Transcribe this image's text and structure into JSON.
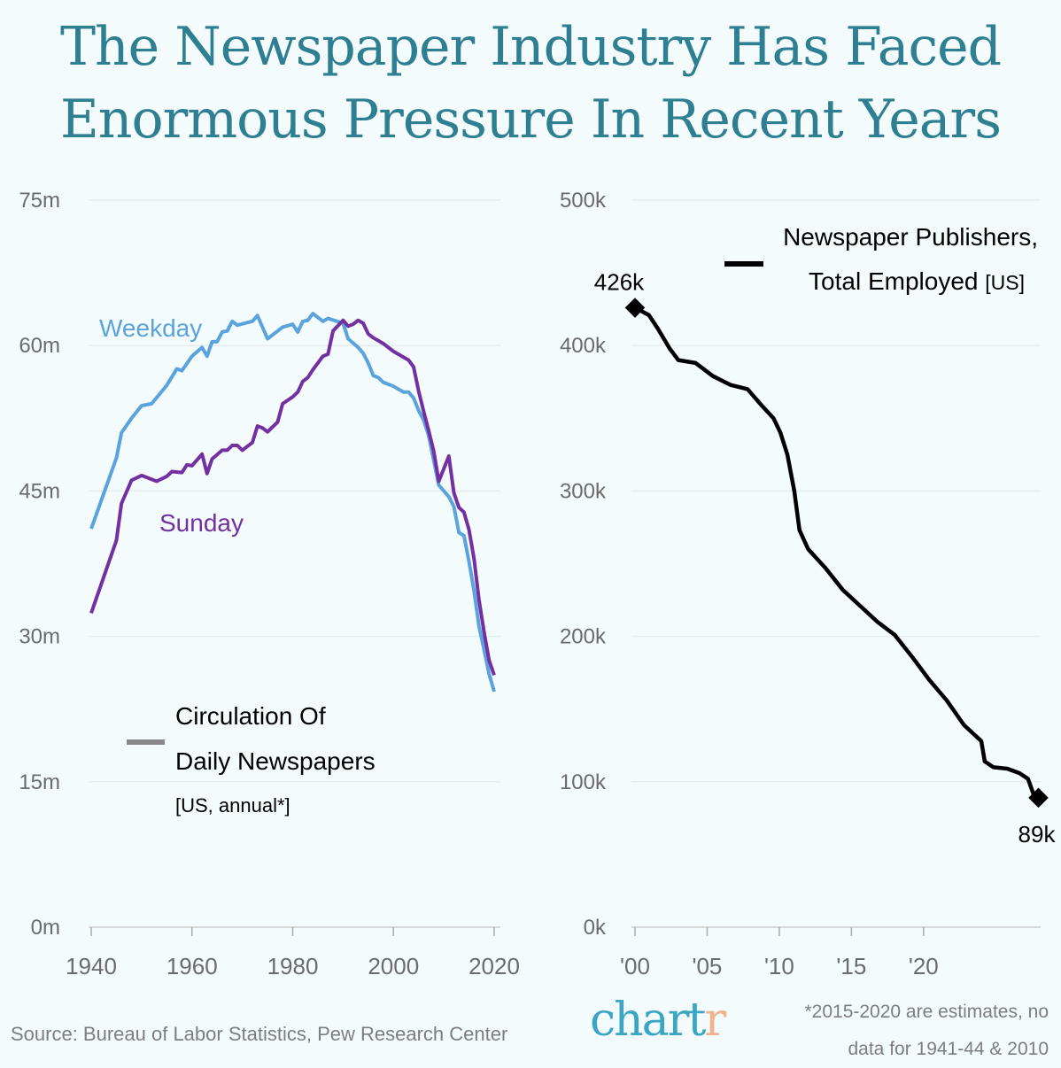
{
  "title": "The Newspaper Industry Has Faced Enormous Pressure In Recent Years",
  "colors": {
    "title": "#2e7f91",
    "weekday": "#5ba3dc",
    "sunday": "#7330a0",
    "employment": "#000000",
    "logo": "#3ba6c4",
    "logo_accent": "#f2b28c"
  },
  "chart_data": [
    {
      "type": "line",
      "legend": {
        "line1": "Circulation Of",
        "line2": "Daily Newspapers",
        "line3": "[US, annual*]"
      },
      "xlim": [
        1940,
        2020
      ],
      "ylim": [
        0,
        75
      ],
      "x_ticks": [
        "1940",
        "1960",
        "1980",
        "2000",
        "2020"
      ],
      "y_ticks": [
        "0m",
        "15m",
        "30m",
        "45m",
        "60m",
        "75m"
      ],
      "grid": true,
      "series": [
        {
          "name": "Weekday",
          "points": [
            [
              1940,
              41.1
            ],
            [
              1945,
              48.4
            ],
            [
              1946,
              51.0
            ],
            [
              1948,
              52.5
            ],
            [
              1950,
              53.8
            ],
            [
              1952,
              54.0
            ],
            [
              1955,
              55.9
            ],
            [
              1957,
              57.6
            ],
            [
              1958,
              57.4
            ],
            [
              1960,
              58.9
            ],
            [
              1962,
              59.8
            ],
            [
              1963,
              58.9
            ],
            [
              1964,
              60.4
            ],
            [
              1965,
              60.4
            ],
            [
              1966,
              61.4
            ],
            [
              1967,
              61.5
            ],
            [
              1968,
              62.5
            ],
            [
              1969,
              62.1
            ],
            [
              1972,
              62.5
            ],
            [
              1973,
              63.1
            ],
            [
              1975,
              60.7
            ],
            [
              1978,
              61.9
            ],
            [
              1980,
              62.2
            ],
            [
              1981,
              61.4
            ],
            [
              1982,
              62.5
            ],
            [
              1983,
              62.6
            ],
            [
              1984,
              63.3
            ],
            [
              1986,
              62.5
            ],
            [
              1987,
              62.8
            ],
            [
              1990,
              62.3
            ],
            [
              1991,
              60.7
            ],
            [
              1993,
              59.8
            ],
            [
              1994,
              59.2
            ],
            [
              1995,
              58.2
            ],
            [
              1996,
              56.9
            ],
            [
              1997,
              56.7
            ],
            [
              1998,
              56.2
            ],
            [
              2000,
              55.8
            ],
            [
              2002,
              55.2
            ],
            [
              2003,
              55.2
            ],
            [
              2004,
              54.6
            ],
            [
              2005,
              53.3
            ],
            [
              2006,
              52.3
            ],
            [
              2007,
              50.7
            ],
            [
              2009,
              45.6
            ],
            [
              2011,
              44.4
            ],
            [
              2012,
              43.4
            ],
            [
              2013,
              40.7
            ],
            [
              2014,
              40.4
            ],
            [
              2015,
              37.7
            ],
            [
              2016,
              34.7
            ],
            [
              2017,
              31.0
            ],
            [
              2018,
              28.6
            ],
            [
              2019,
              26.1
            ],
            [
              2020,
              24.3
            ]
          ]
        },
        {
          "name": "Sunday",
          "points": [
            [
              1940,
              32.4
            ],
            [
              1945,
              39.9
            ],
            [
              1946,
              43.7
            ],
            [
              1948,
              46.1
            ],
            [
              1950,
              46.6
            ],
            [
              1953,
              46.0
            ],
            [
              1955,
              46.5
            ],
            [
              1956,
              47.0
            ],
            [
              1958,
              46.9
            ],
            [
              1959,
              47.7
            ],
            [
              1960,
              47.6
            ],
            [
              1962,
              48.8
            ],
            [
              1963,
              46.8
            ],
            [
              1964,
              48.3
            ],
            [
              1966,
              49.2
            ],
            [
              1967,
              49.2
            ],
            [
              1968,
              49.7
            ],
            [
              1969,
              49.7
            ],
            [
              1970,
              49.2
            ],
            [
              1972,
              50.0
            ],
            [
              1973,
              51.7
            ],
            [
              1974,
              51.5
            ],
            [
              1975,
              51.1
            ],
            [
              1977,
              52.1
            ],
            [
              1978,
              54.0
            ],
            [
              1980,
              54.7
            ],
            [
              1981,
              55.2
            ],
            [
              1982,
              56.3
            ],
            [
              1983,
              56.7
            ],
            [
              1984,
              57.5
            ],
            [
              1986,
              58.9
            ],
            [
              1987,
              59.1
            ],
            [
              1988,
              61.5
            ],
            [
              1990,
              62.6
            ],
            [
              1991,
              62.0
            ],
            [
              1992,
              62.2
            ],
            [
              1993,
              62.6
            ],
            [
              1994,
              62.3
            ],
            [
              1995,
              61.2
            ],
            [
              1996,
              60.8
            ],
            [
              1998,
              60.2
            ],
            [
              2000,
              59.4
            ],
            [
              2002,
              58.8
            ],
            [
              2003,
              58.5
            ],
            [
              2004,
              57.8
            ],
            [
              2005,
              55.3
            ],
            [
              2006,
              53.2
            ],
            [
              2007,
              51.2
            ],
            [
              2008,
              49.1
            ],
            [
              2009,
              46.0
            ],
            [
              2011,
              48.6
            ],
            [
              2012,
              44.8
            ],
            [
              2013,
              43.3
            ],
            [
              2014,
              42.8
            ],
            [
              2015,
              41.0
            ],
            [
              2016,
              38.0
            ],
            [
              2017,
              33.7
            ],
            [
              2018,
              30.4
            ],
            [
              2019,
              27.5
            ],
            [
              2020,
              26.0
            ]
          ]
        }
      ]
    },
    {
      "type": "line",
      "legend": {
        "line1": "Newspaper Publishers,",
        "line2": "Total Employed",
        "line2_suffix": "[US]"
      },
      "xlim": [
        2000,
        2024
      ],
      "ylim": [
        0,
        500
      ],
      "x_ticks": [
        "'00",
        "'05",
        "'10",
        "'15",
        "'20"
      ],
      "y_ticks": [
        "0k",
        "100k",
        "200k",
        "300k",
        "400k",
        "500k"
      ],
      "grid": true,
      "annotations": {
        "start": "426k",
        "end": "89k"
      },
      "series": [
        {
          "name": "Newspaper Publishers, Total Employed",
          "points": [
            [
              2000,
              426
            ],
            [
              2000.8,
              421
            ],
            [
              2001.3,
              412
            ],
            [
              2002,
              398
            ],
            [
              2002.5,
              390
            ],
            [
              2003.5,
              388
            ],
            [
              2004.5,
              379
            ],
            [
              2005.5,
              373
            ],
            [
              2006.5,
              370
            ],
            [
              2007.3,
              359
            ],
            [
              2008,
              350
            ],
            [
              2008.4,
              340
            ],
            [
              2008.8,
              325
            ],
            [
              2009.2,
              300
            ],
            [
              2009.5,
              273
            ],
            [
              2010,
              260
            ],
            [
              2011,
              247
            ],
            [
              2012,
              232
            ],
            [
              2013,
              221
            ],
            [
              2014,
              210
            ],
            [
              2015,
              201
            ],
            [
              2016,
              186
            ],
            [
              2017,
              170
            ],
            [
              2018,
              156
            ],
            [
              2019,
              139
            ],
            [
              2020,
              128
            ],
            [
              2020.2,
              114
            ],
            [
              2020.7,
              110
            ],
            [
              2021.5,
              109
            ],
            [
              2022.2,
              106
            ],
            [
              2022.7,
              102
            ],
            [
              2023.0,
              92
            ],
            [
              2023.3,
              89
            ]
          ]
        }
      ]
    }
  ],
  "footer": {
    "source": "Source: Bureau of Labor Statistics, Pew Research Center",
    "logo_main": "chart",
    "logo_accent": "r",
    "note_line1": "*2015-2020 are estimates, no",
    "note_line2": "data for 1941-44 & 2010"
  }
}
